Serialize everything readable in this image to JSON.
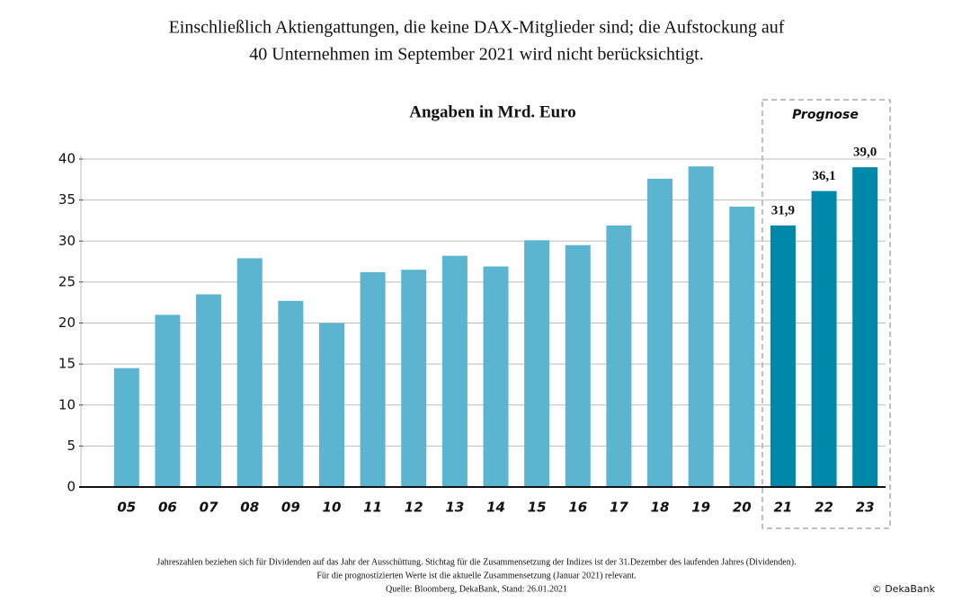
{
  "chart_data": {
    "type": "bar",
    "title": [
      "Einschließlich Aktiengattungen, die keine DAX-Mitglieder sind; die Aufstockung auf",
      "40 Unternehmen im September 2021 wird nicht berücksichtigt."
    ],
    "subtitle": "Angaben in Mrd. Euro",
    "annotation": "Prognose",
    "categories": [
      "05",
      "06",
      "07",
      "08",
      "09",
      "10",
      "11",
      "12",
      "13",
      "14",
      "15",
      "16",
      "17",
      "18",
      "19",
      "20",
      "21",
      "22",
      "23"
    ],
    "values": [
      14.5,
      21.0,
      23.5,
      27.9,
      22.7,
      20.0,
      26.2,
      26.5,
      28.2,
      26.9,
      30.1,
      29.5,
      31.9,
      37.6,
      39.1,
      34.2,
      31.9,
      36.1,
      39.0
    ],
    "value_labels": [
      null,
      null,
      null,
      null,
      null,
      null,
      null,
      null,
      null,
      null,
      null,
      null,
      null,
      null,
      null,
      null,
      "31,9",
      "36,1",
      "39,0"
    ],
    "colors": [
      "#5bb5d0",
      "#5bb5d0",
      "#5bb5d0",
      "#5bb5d0",
      "#5bb5d0",
      "#5bb5d0",
      "#5bb5d0",
      "#5bb5d0",
      "#5bb5d0",
      "#5bb5d0",
      "#5bb5d0",
      "#5bb5d0",
      "#5bb5d0",
      "#5bb5d0",
      "#5bb5d0",
      "#5bb5d0",
      "#0088ab",
      "#0088ab",
      "#0088ab"
    ],
    "ylim": [
      0,
      40
    ],
    "yticks": [
      0,
      5,
      10,
      15,
      20,
      25,
      30,
      35,
      40
    ],
    "grid": true,
    "footnotes": [
      "Jahreszahlen beziehen sich für Dividenden auf das Jahr der Ausschüttung. Stichtag für die Zusammensetzung der Indizes ist der 31.Dezember des laufenden Jahres (Dividenden).",
      "Für die prognostizierten Werte ist die aktuelle Zusammensetzung (Januar 2021) relevant.",
      "Quelle: Bloomberg, DekaBank, Stand: 26.01.2021"
    ],
    "copyright": "© DekaBank"
  }
}
